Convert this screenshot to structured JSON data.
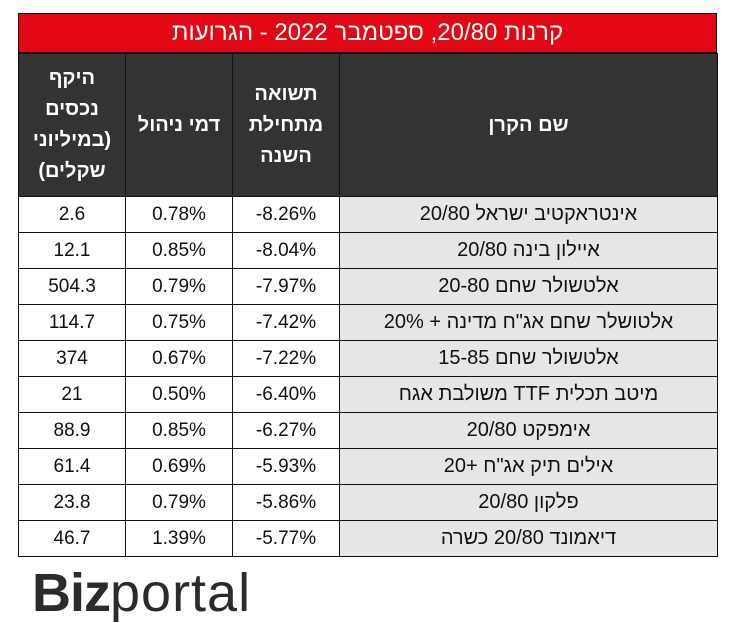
{
  "title": "קרנות 20/80, ספטמבר 2022 - הגרועות",
  "columns": {
    "assets": "היקף\nנכסים\n(במיליוני\nשקלים)",
    "fee": "דמי ניהול",
    "ytd": "תשואה\nמתחילת\nהשנה",
    "fund": "שם הקרן"
  },
  "rows": [
    {
      "fund": "אינטראקטיב ישראל 20/80",
      "ytd": "-8.26%",
      "fee": "0.78%",
      "assets": "2.6"
    },
    {
      "fund": "איילון בינה 20/80",
      "ytd": "-8.04%",
      "fee": "0.85%",
      "assets": "12.1"
    },
    {
      "fund": "אלטשולר שחם 20-80",
      "ytd": "-7.97%",
      "fee": "0.79%",
      "assets": "504.3"
    },
    {
      "fund": "אלטושלר שחם אג\"ח מדינה + 20%",
      "ytd": "-7.42%",
      "fee": "0.75%",
      "assets": "114.7"
    },
    {
      "fund": "אלטשולר שחם 15-85",
      "ytd": "-7.22%",
      "fee": "0.67%",
      "assets": "374"
    },
    {
      "fund": "מיטב תכלית TTF משולבת אגח",
      "ytd": "-6.40%",
      "fee": "0.50%",
      "assets": "21"
    },
    {
      "fund": "אימפקט 20/80",
      "ytd": "-6.27%",
      "fee": "0.85%",
      "assets": "88.9"
    },
    {
      "fund": "אילים תיק אג\"ח +20",
      "ytd": "-5.93%",
      "fee": "0.69%",
      "assets": "61.4"
    },
    {
      "fund": "פלקון 20/80",
      "ytd": "-5.86%",
      "fee": "0.79%",
      "assets": "23.8"
    },
    {
      "fund": "דיאמונד 20/80 כשרה",
      "ytd": "-5.77%",
      "fee": "1.39%",
      "assets": "46.7"
    }
  ],
  "logo": {
    "part1": "Biz",
    "part2": "portal"
  }
}
